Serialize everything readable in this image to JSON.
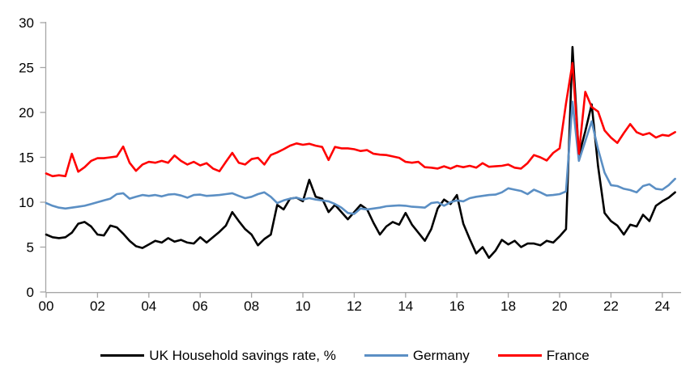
{
  "chart_data": {
    "type": "line",
    "title": "",
    "x_start": 2000,
    "x_step_years": 0.25,
    "grid": false,
    "legend_position": "bottom",
    "axis_color": "#a6a6a6",
    "text_color": "#000000",
    "x_axis": {
      "tick_years": [
        2000,
        2002,
        2004,
        2006,
        2008,
        2010,
        2012,
        2014,
        2016,
        2018,
        2020,
        2022,
        2024
      ],
      "tick_labels": [
        "00",
        "02",
        "04",
        "06",
        "08",
        "10",
        "12",
        "14",
        "16",
        "18",
        "20",
        "22",
        "24"
      ]
    },
    "y_axis": {
      "min": 0,
      "max": 30,
      "ticks": [
        0,
        5,
        10,
        15,
        20,
        25,
        30
      ]
    },
    "series": [
      {
        "id": "uk",
        "name": "UK Household savings rate, %",
        "color": "#000000",
        "values": [
          6.4,
          6.1,
          6.0,
          6.1,
          6.6,
          7.6,
          7.8,
          7.3,
          6.4,
          6.3,
          7.4,
          7.2,
          6.5,
          5.7,
          5.1,
          4.9,
          5.3,
          5.7,
          5.5,
          6.0,
          5.6,
          5.8,
          5.5,
          5.4,
          6.1,
          5.5,
          6.1,
          6.7,
          7.4,
          8.9,
          7.9,
          7.0,
          6.4,
          5.2,
          5.9,
          6.4,
          9.7,
          9.2,
          10.4,
          10.5,
          10.1,
          12.5,
          10.6,
          10.4,
          8.9,
          9.7,
          8.9,
          8.1,
          8.9,
          9.7,
          9.2,
          7.7,
          6.4,
          7.3,
          7.8,
          7.5,
          8.8,
          7.5,
          6.6,
          5.7,
          7.0,
          9.3,
          10.3,
          9.8,
          10.8,
          7.6,
          5.9,
          4.3,
          5.0,
          3.8,
          4.6,
          5.8,
          5.3,
          5.7,
          5.0,
          5.4,
          5.4,
          5.2,
          5.7,
          5.5,
          6.2,
          7.0,
          27.3,
          15.2,
          17.9,
          20.9,
          14.0,
          8.8,
          7.9,
          7.4,
          6.4,
          7.5,
          7.3,
          8.6,
          7.9,
          9.6,
          10.1,
          10.5,
          11.1
        ]
      },
      {
        "id": "germany",
        "name": "Germany",
        "color": "#5b8fc4",
        "values": [
          9.9,
          9.6,
          9.4,
          9.3,
          9.4,
          9.5,
          9.6,
          9.8,
          10.0,
          10.2,
          10.4,
          10.9,
          11.0,
          10.4,
          10.6,
          10.8,
          10.7,
          10.8,
          10.65,
          10.85,
          10.9,
          10.75,
          10.5,
          10.8,
          10.85,
          10.7,
          10.75,
          10.8,
          10.9,
          11.0,
          10.7,
          10.45,
          10.6,
          10.9,
          11.1,
          10.6,
          9.9,
          10.2,
          10.4,
          10.5,
          10.3,
          10.45,
          10.3,
          10.2,
          10.1,
          9.8,
          9.4,
          8.8,
          8.7,
          9.3,
          9.2,
          9.3,
          9.4,
          9.55,
          9.6,
          9.65,
          9.6,
          9.5,
          9.45,
          9.4,
          9.9,
          10.0,
          9.6,
          10.0,
          10.2,
          10.1,
          10.45,
          10.6,
          10.7,
          10.8,
          10.85,
          11.1,
          11.55,
          11.4,
          11.25,
          10.9,
          11.4,
          11.1,
          10.75,
          10.8,
          10.9,
          11.2,
          21.2,
          14.6,
          16.8,
          19.0,
          15.9,
          13.3,
          11.9,
          11.8,
          11.5,
          11.35,
          11.1,
          11.8,
          12.0,
          11.5,
          11.4,
          11.9,
          12.6
        ]
      },
      {
        "id": "france",
        "name": "France",
        "color": "#ff0000",
        "values": [
          13.2,
          12.9,
          13.0,
          12.9,
          15.4,
          13.4,
          13.9,
          14.6,
          14.9,
          14.9,
          15.0,
          15.1,
          16.2,
          14.4,
          13.5,
          14.2,
          14.5,
          14.4,
          14.6,
          14.4,
          15.2,
          14.6,
          14.2,
          14.5,
          14.1,
          14.35,
          13.75,
          13.45,
          14.5,
          15.5,
          14.4,
          14.2,
          14.8,
          14.95,
          14.2,
          15.25,
          15.55,
          15.9,
          16.3,
          16.55,
          16.4,
          16.5,
          16.3,
          16.15,
          14.7,
          16.15,
          16.0,
          16.0,
          15.9,
          15.7,
          15.8,
          15.4,
          15.3,
          15.25,
          15.1,
          14.95,
          14.5,
          14.4,
          14.5,
          13.9,
          13.85,
          13.75,
          14.0,
          13.75,
          14.05,
          13.9,
          14.05,
          13.85,
          14.35,
          13.95,
          14.0,
          14.05,
          14.2,
          13.85,
          13.75,
          14.35,
          15.25,
          15.0,
          14.65,
          15.5,
          16.0,
          21.0,
          25.5,
          15.4,
          22.3,
          20.6,
          20.1,
          18.0,
          17.2,
          16.6,
          17.7,
          18.7,
          17.8,
          17.5,
          17.7,
          17.2,
          17.5,
          17.4,
          17.8
        ]
      }
    ]
  }
}
